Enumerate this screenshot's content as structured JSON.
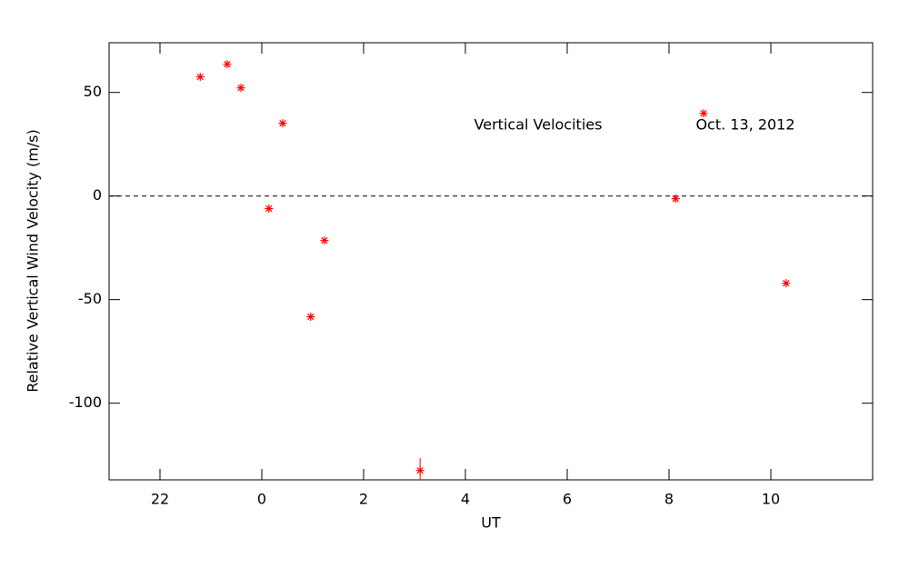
{
  "chart_data": {
    "type": "scatter",
    "x_label": "UT",
    "y_label": "Relative Vertical Wind Velocity (m/s)",
    "annotations": [
      "Vertical Velocities",
      "Oct. 13, 2012"
    ],
    "xlim": [
      -3,
      12
    ],
    "ylim": [
      -137,
      74
    ],
    "xticks": [
      {
        "value": -2,
        "label": "22"
      },
      0,
      2,
      4,
      6,
      8,
      10
    ],
    "yticks": [
      -100,
      -50,
      0,
      50
    ],
    "reference_line": 0,
    "series": [
      {
        "color": "#ff0000",
        "x": [
          -1.21,
          -0.68,
          -0.41,
          0.41,
          0.14,
          1.23,
          0.96,
          3.11,
          8.13,
          8.68,
          10.3
        ],
        "values": [
          57.5,
          63.6,
          52.2,
          35.1,
          -6.1,
          -21.5,
          -58.3,
          -132.5,
          -1.3,
          39.9,
          -42.1
        ],
        "errors": [
          null,
          null,
          null,
          null,
          null,
          null,
          null,
          6,
          null,
          null,
          null
        ]
      }
    ]
  }
}
